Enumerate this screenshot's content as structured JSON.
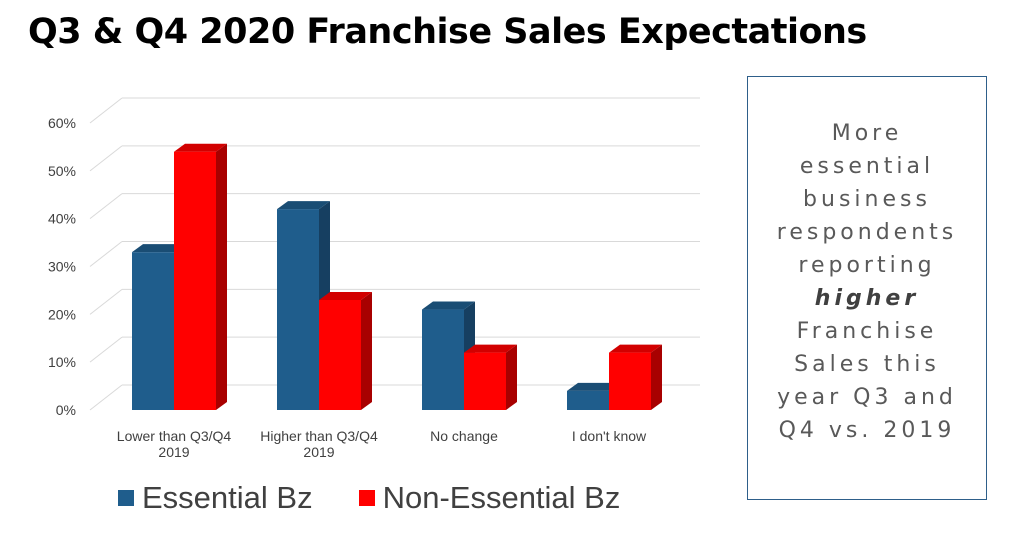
{
  "page": {
    "title": "Q3 & Q4 2020 Franchise Sales Expectations"
  },
  "callout": {
    "before": "More essential business respondents reporting",
    "emphasis": "higher",
    "after": "Franchise Sales this year Q3 and Q4 vs. 2019"
  },
  "colors": {
    "essential": "#1f5d8c",
    "essential_side": "#163f61",
    "essential_top": "#1a4d74",
    "non_essential": "#ff0000",
    "non_essential_side": "#a80000",
    "non_essential_top": "#d20000",
    "grid": "#d9d9d9",
    "tick_text": "#404040"
  },
  "chart_data": {
    "type": "bar",
    "title": "",
    "xlabel": "",
    "ylabel": "",
    "categories": [
      [
        "Lower than Q3/Q4",
        "2019"
      ],
      [
        "Higher than Q3/Q4",
        "2019"
      ],
      [
        "No change"
      ],
      [
        "I don't know"
      ]
    ],
    "series": [
      {
        "name": "Essential Bz",
        "values": [
          33,
          42,
          21,
          4
        ]
      },
      {
        "name": "Non-Essential Bz",
        "values": [
          54,
          23,
          12,
          12
        ]
      }
    ],
    "ylim": [
      0,
      60
    ],
    "yticks": [
      0,
      10,
      20,
      30,
      40,
      50,
      60
    ],
    "ytick_labels": [
      "0%",
      "10%",
      "20%",
      "30%",
      "40%",
      "50%",
      "60%"
    ],
    "grid": true,
    "legend_position": "bottom",
    "style": "3d-clustered-column"
  }
}
